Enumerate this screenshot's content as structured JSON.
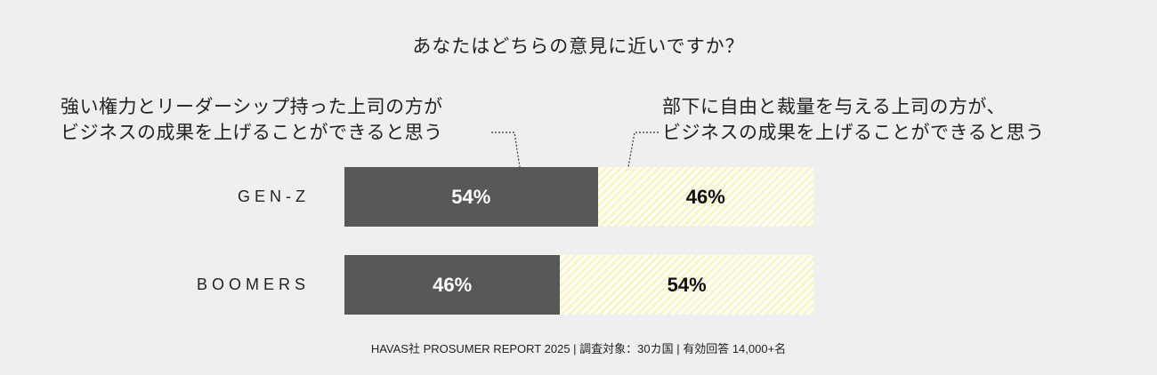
{
  "chart_data": {
    "type": "bar",
    "stacked": true,
    "orientation": "horizontal",
    "title": "あなたはどちらの意見に近いですか？",
    "categories": [
      "GEN-Z",
      "BOOMERS"
    ],
    "series": [
      {
        "name": "強い権力とリーダーシップ持った上司の方がビジネスの成果を上げることができると思う",
        "values": [
          54,
          46
        ],
        "labels": [
          "54%",
          "46%"
        ],
        "color": "#585858"
      },
      {
        "name": "部下に自由と裁量を与える上司の方が、ビジネスの成果を上げることができると思う",
        "values": [
          46,
          54
        ],
        "labels": [
          "46%",
          "54%"
        ],
        "color": "#f7f1bf"
      }
    ],
    "unit": "%",
    "xlim": [
      0,
      100
    ]
  },
  "legend": {
    "left_line1": "強い権力とリーダーシップ持った上司の方が",
    "left_line2": "ビジネスの成果を上げることができると思う",
    "right_line1": "部下に自由と裁量を与える上司の方が、",
    "right_line2": "ビジネスの成果を上げることができると思う"
  },
  "source": "HAVAS社 PROSUMER REPORT 2025 | 調査対象：30カ国 | 有効回答 14,000+名"
}
